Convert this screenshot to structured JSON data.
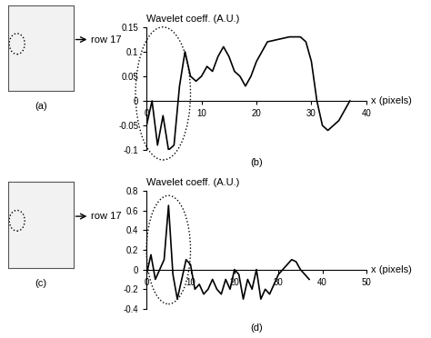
{
  "images": [
    {
      "caption": "(a)",
      "annotation": "row 17"
    },
    {
      "caption": "(c)",
      "annotation": "row 17"
    }
  ],
  "chart_data": [
    {
      "type": "line",
      "caption": "(b)",
      "y_label": "Wavelet coeff. (A.U.)",
      "x_label": "x (pixels)",
      "color": "#000000",
      "x": [
        0,
        1,
        2,
        3,
        4,
        5,
        6,
        7,
        8,
        9,
        10,
        11,
        12,
        13,
        14,
        15,
        16,
        17,
        18,
        19,
        20,
        21,
        22,
        24,
        26,
        28,
        29,
        30,
        31,
        32,
        33,
        34,
        35,
        36,
        37
      ],
      "values": [
        -0.05,
        0.0,
        -0.09,
        -0.03,
        -0.1,
        -0.09,
        0.03,
        0.1,
        0.05,
        0.04,
        0.05,
        0.07,
        0.06,
        0.09,
        0.11,
        0.09,
        0.06,
        0.05,
        0.03,
        0.05,
        0.08,
        0.1,
        0.12,
        0.125,
        0.13,
        0.13,
        0.12,
        0.08,
        0.0,
        -0.05,
        -0.06,
        -0.05,
        -0.04,
        -0.02,
        0.0
      ],
      "xlim": [
        0,
        40
      ],
      "ylim": [
        -0.1,
        0.15
      ],
      "xticks": [
        0,
        10,
        20,
        30,
        40
      ],
      "yticks": [
        -0.1,
        -0.05,
        0,
        0.05,
        0.1,
        0.15
      ]
    },
    {
      "type": "line",
      "caption": "(d)",
      "y_label": "Wavelet coeff. (A.U.)",
      "x_label": "x (pixels)",
      "color": "#000000",
      "x": [
        0,
        1,
        2,
        3,
        4,
        5,
        6,
        7,
        8,
        9,
        10,
        11,
        12,
        13,
        14,
        15,
        16,
        17,
        18,
        19,
        20,
        21,
        22,
        23,
        24,
        25,
        26,
        27,
        28,
        29,
        30,
        31,
        32,
        33,
        34,
        35,
        36,
        37
      ],
      "values": [
        -0.05,
        0.15,
        -0.1,
        0.0,
        0.1,
        0.65,
        -0.05,
        -0.3,
        -0.1,
        0.1,
        0.05,
        -0.2,
        -0.15,
        -0.25,
        -0.2,
        -0.1,
        -0.2,
        -0.25,
        -0.1,
        -0.2,
        0.0,
        -0.05,
        -0.3,
        -0.1,
        -0.2,
        0.0,
        -0.3,
        -0.2,
        -0.25,
        -0.15,
        -0.05,
        0.0,
        0.05,
        0.1,
        0.08,
        0.0,
        -0.05,
        -0.1
      ],
      "xlim": [
        0,
        50
      ],
      "ylim": [
        -0.4,
        0.8
      ],
      "xticks": [
        0,
        10,
        20,
        30,
        40,
        50
      ],
      "yticks": [
        -0.4,
        -0.2,
        0,
        0.2,
        0.4,
        0.6,
        0.8
      ]
    }
  ]
}
